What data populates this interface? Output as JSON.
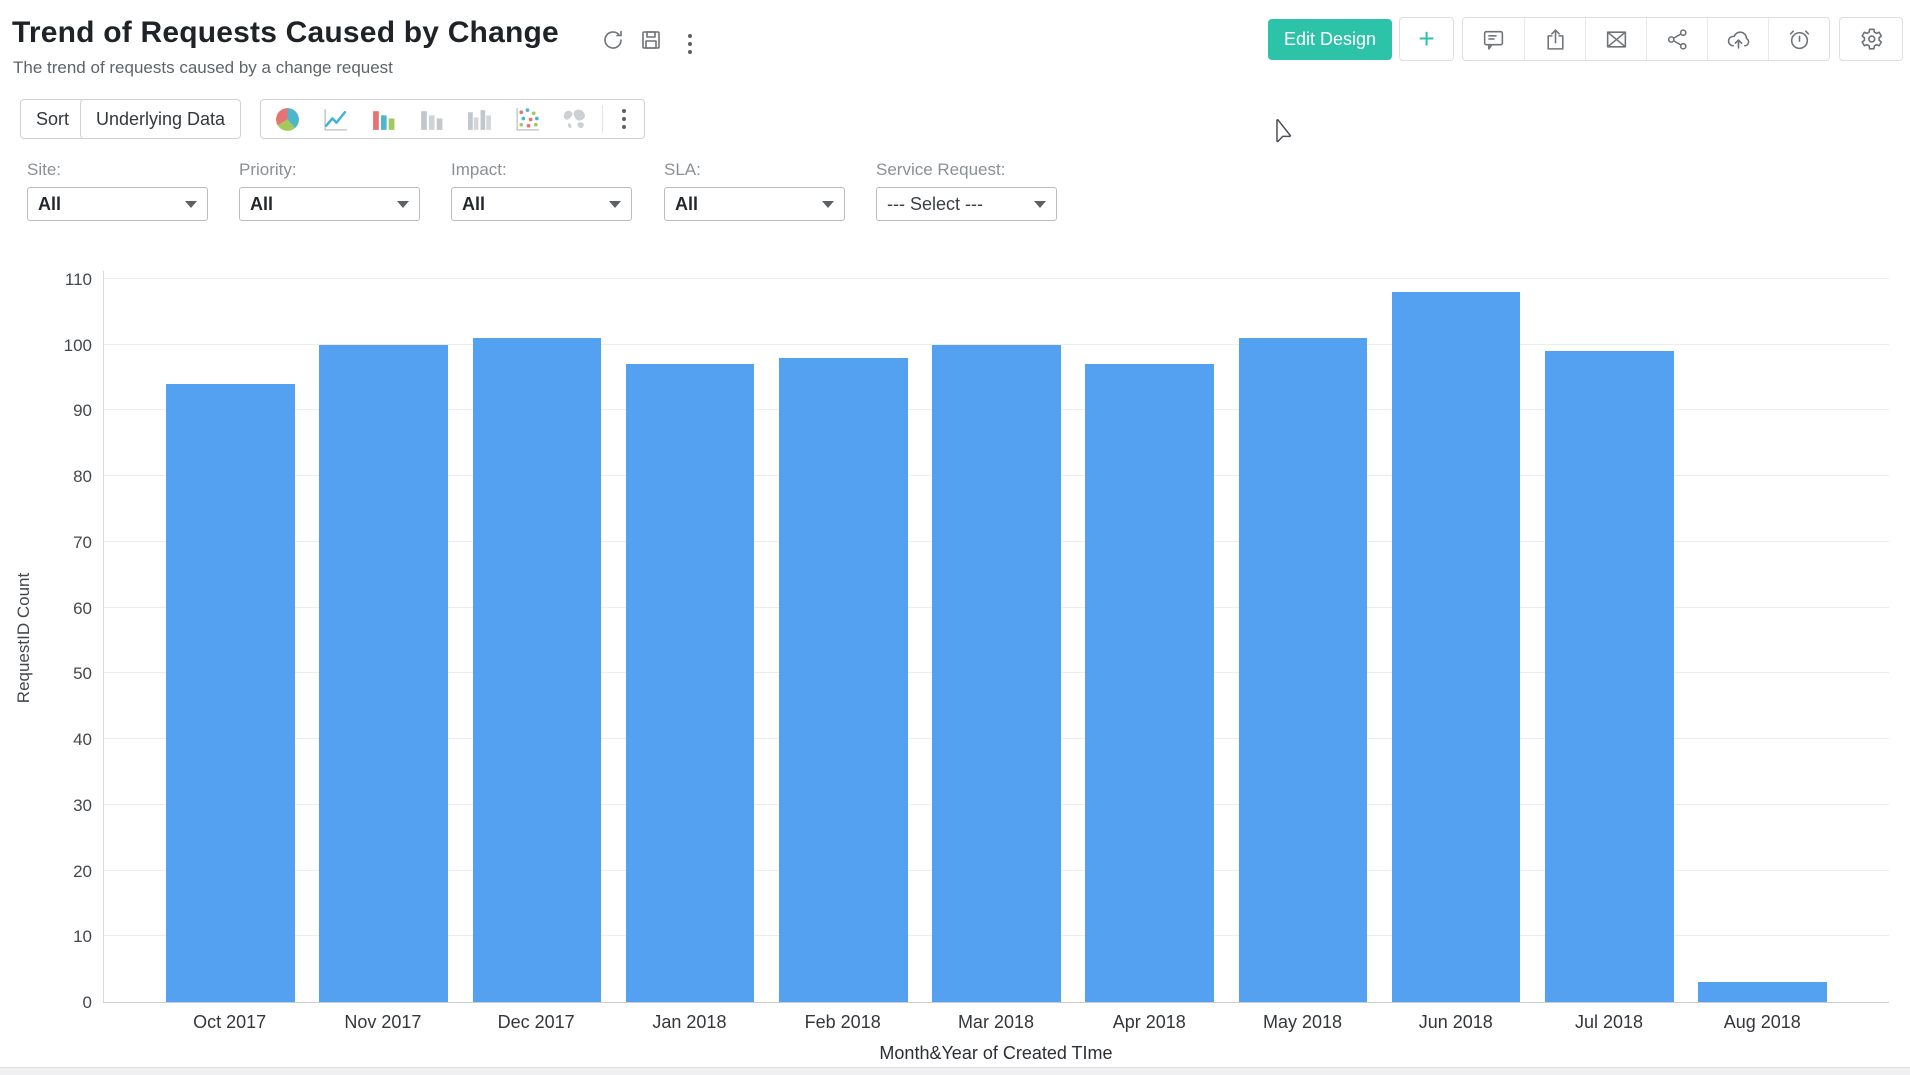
{
  "header": {
    "title": "Trend of Requests Caused by Change",
    "subtitle": "The trend of requests caused by a change request",
    "edit_design_label": "Edit Design",
    "add_label": "+"
  },
  "toolbar": {
    "sort_label": "Sort",
    "underlying_data_label": "Underlying Data",
    "chart_type_icons": [
      "pie-chart-icon",
      "line-chart-icon",
      "bar-chart-color-icon",
      "bar-chart-gray-icon",
      "grouped-bar-chart-icon",
      "scatter-chart-icon",
      "map-chart-icon",
      "more-chart-types-icon"
    ]
  },
  "action_icons": [
    "refresh-icon",
    "save-icon",
    "more-options-icon",
    "comment-icon",
    "export-icon",
    "email-icon",
    "share-icon",
    "cloud-upload-icon",
    "alarm-icon",
    "settings-icon"
  ],
  "filters": [
    {
      "label": "Site:",
      "value": "All"
    },
    {
      "label": "Priority:",
      "value": "All"
    },
    {
      "label": "Impact:",
      "value": "All"
    },
    {
      "label": "SLA:",
      "value": "All"
    },
    {
      "label": "Service Request:",
      "value": "--- Select ---"
    }
  ],
  "chart_data": {
    "type": "bar",
    "categories": [
      "Oct 2017",
      "Nov 2017",
      "Dec 2017",
      "Jan 2018",
      "Feb 2018",
      "Mar 2018",
      "Apr 2018",
      "May 2018",
      "Jun 2018",
      "Jul 2018",
      "Aug 2018"
    ],
    "values": [
      94,
      100,
      101,
      97,
      98,
      100,
      97,
      101,
      108,
      99,
      3
    ],
    "title": "Trend of Requests Caused by Change",
    "xlabel": "Month&Year of Created TIme",
    "ylabel": "RequestID Count",
    "ylim": [
      0,
      110
    ],
    "ytick_step": 10,
    "grid": "horizontal",
    "legend": "none",
    "bar_color": "#55a1f1"
  },
  "colors": {
    "accent_teal": "#2dc3a8",
    "bar_blue": "#55a1f1",
    "icon_gray": "#6f7377"
  }
}
